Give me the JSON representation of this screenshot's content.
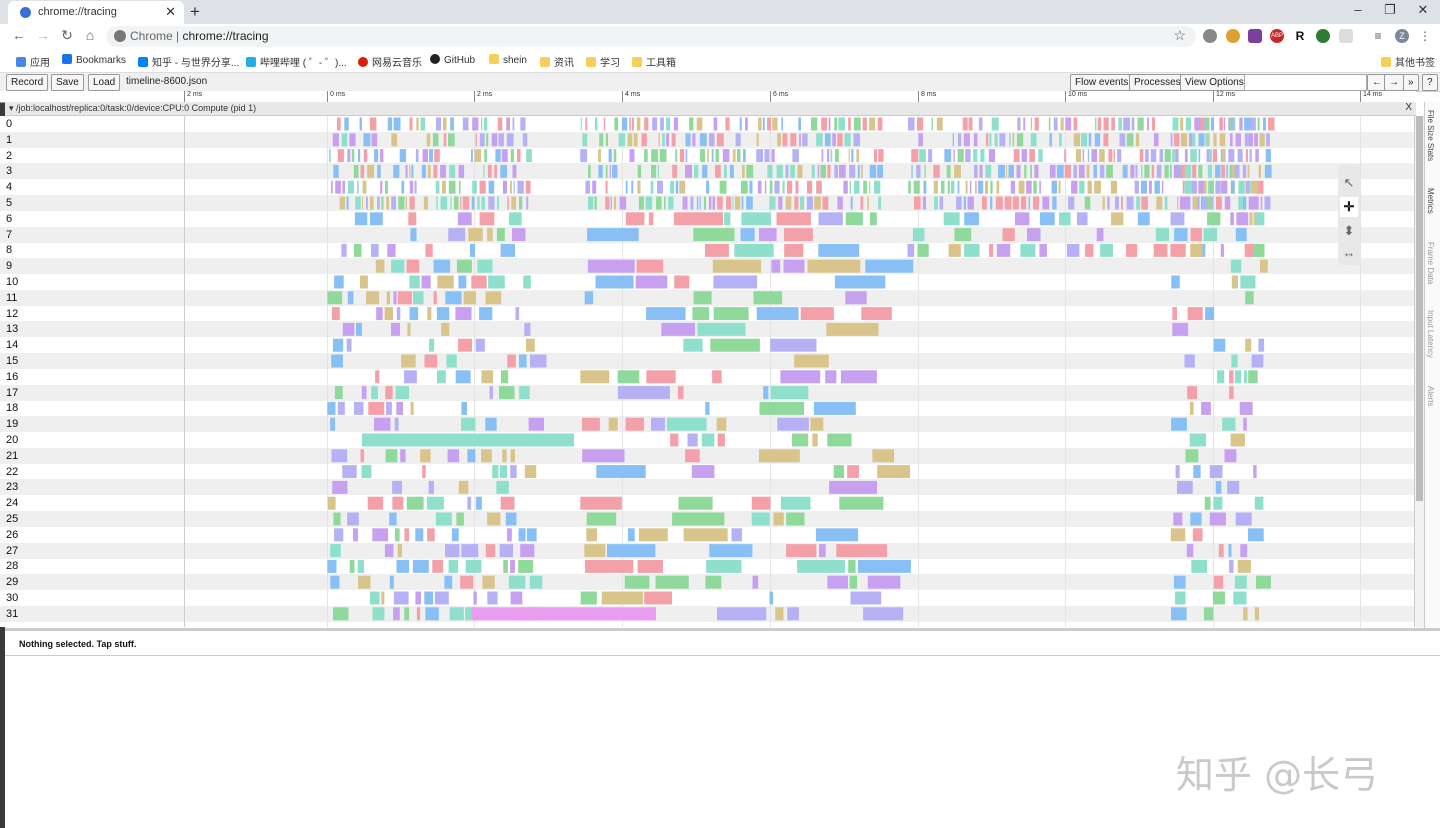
{
  "browser": {
    "tab_title": "chrome://tracing",
    "new_tab": "+",
    "window_controls": {
      "minimize": "–",
      "maximize": "❐",
      "close": "✕"
    },
    "url_prefix": "Chrome",
    "url_separator": "|",
    "url": "chrome://tracing",
    "profile_initial": "Z",
    "extension_labels": [
      "ABP",
      "R"
    ]
  },
  "bookmarks": [
    {
      "label": "应用",
      "icon": "apps-grid-icon"
    },
    {
      "label": "Bookmarks",
      "icon": "star-icon"
    },
    {
      "label": "知乎 - 与世界分享...",
      "icon": "zhihu-icon"
    },
    {
      "label": "哔哩哔哩 ( ゜- ゜)...",
      "icon": "bilibili-icon"
    },
    {
      "label": "网易云音乐",
      "icon": "netease-music-icon"
    },
    {
      "label": "GitHub",
      "icon": "github-icon"
    },
    {
      "label": "shein",
      "icon": "folder-icon"
    },
    {
      "label": "资讯",
      "icon": "folder-icon"
    },
    {
      "label": "学习",
      "icon": "folder-icon"
    },
    {
      "label": "工具箱",
      "icon": "folder-icon"
    },
    {
      "label": "其他书签",
      "icon": "folder-icon"
    }
  ],
  "tracing": {
    "record": "Record",
    "save": "Save",
    "load": "Load",
    "filename": "timeline-8600.json",
    "flow_events": "Flow events",
    "processes": "Processes",
    "view_options": "View Options",
    "nav_prev": "←",
    "nav_next": "→",
    "nav_more": "»",
    "help": "?",
    "ruler_ticks": [
      "2 ms",
      "0 ms",
      "2 ms",
      "4 ms",
      "6 ms",
      "8 ms",
      "10 ms",
      "12 ms",
      "14 ms"
    ],
    "process_title": "/job:localhost/replica:0/task:0/device:CPU:0 Compute (pid 1)",
    "process_close": "X",
    "row_labels": [
      "0",
      "1",
      "2",
      "3",
      "4",
      "5",
      "6",
      "7",
      "8",
      "9",
      "10",
      "11",
      "12",
      "13",
      "14",
      "15",
      "16",
      "17",
      "18",
      "19",
      "20",
      "21",
      "22",
      "23",
      "24",
      "25",
      "26",
      "27",
      "28",
      "29",
      "30",
      "31"
    ],
    "side_tabs": [
      "File Size Stats",
      "Metrics",
      "Frame Data",
      "Input Latency",
      "Alerts"
    ],
    "status": "Nothing selected. Tap stuff."
  },
  "watermark": "知乎 @长弓",
  "colors": {
    "pink": "#f4a0a8",
    "blue": "#88bff5",
    "green": "#8fd99a",
    "tan": "#d9c58c",
    "purple": "#c8a0f0",
    "teal": "#8ee0cc",
    "violet": "#ea9cf0",
    "lavender": "#b6b0f5"
  }
}
